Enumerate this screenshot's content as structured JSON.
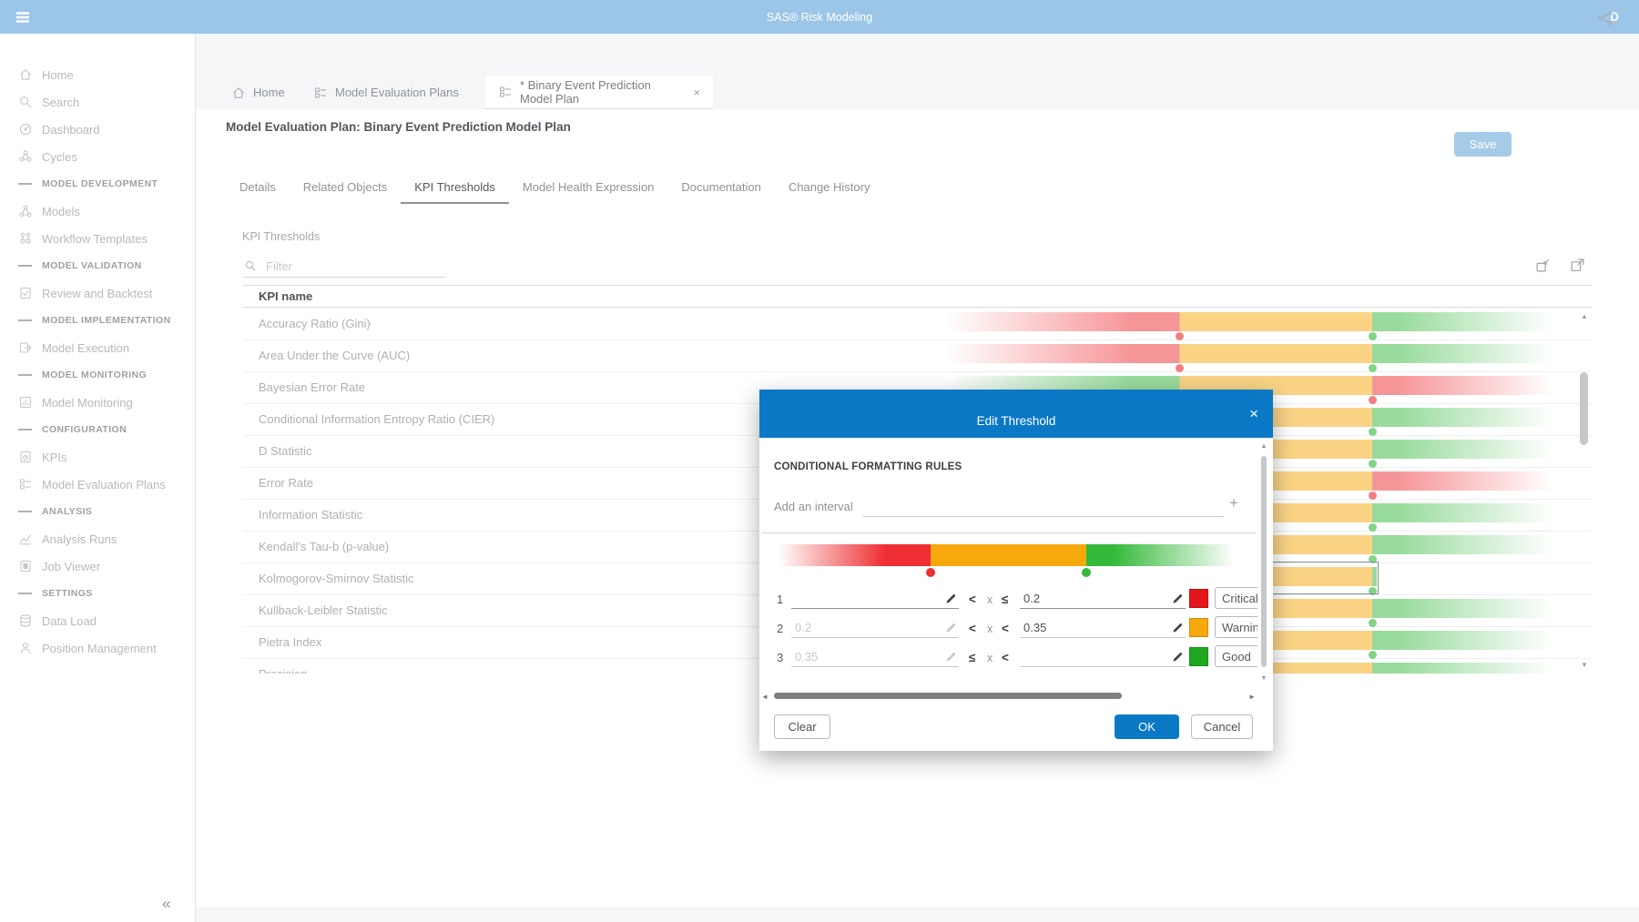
{
  "topbar": {
    "title": "SAS® Risk Modeling",
    "user_initial": "D"
  },
  "sidebar": {
    "items": [
      {
        "type": "item",
        "icon": "home-icon",
        "label": "Home"
      },
      {
        "type": "item",
        "icon": "search-icon",
        "label": "Search"
      },
      {
        "type": "item",
        "icon": "dashboard-icon",
        "label": "Dashboard"
      },
      {
        "type": "item",
        "icon": "cycles-icon",
        "label": "Cycles"
      },
      {
        "type": "section",
        "label": "MODEL DEVELOPMENT"
      },
      {
        "type": "item",
        "icon": "models-icon",
        "label": "Models"
      },
      {
        "type": "item",
        "icon": "workflow-templates-icon",
        "label": "Workflow Templates"
      },
      {
        "type": "section",
        "label": "MODEL VALIDATION"
      },
      {
        "type": "item",
        "icon": "review-backtest-icon",
        "label": "Review and Backtest"
      },
      {
        "type": "section",
        "label": "MODEL IMPLEMENTATION"
      },
      {
        "type": "item",
        "icon": "model-execution-icon",
        "label": "Model Execution"
      },
      {
        "type": "section",
        "label": "MODEL MONITORING"
      },
      {
        "type": "item",
        "icon": "model-monitoring-icon",
        "label": "Model Monitoring"
      },
      {
        "type": "section",
        "label": "CONFIGURATION"
      },
      {
        "type": "item",
        "icon": "kpis-icon",
        "label": "KPIs"
      },
      {
        "type": "item",
        "icon": "model-evaluation-plans-icon",
        "label": "Model Evaluation Plans"
      },
      {
        "type": "section",
        "label": "ANALYSIS"
      },
      {
        "type": "item",
        "icon": "analysis-runs-icon",
        "label": "Analysis Runs"
      },
      {
        "type": "item",
        "icon": "job-viewer-icon",
        "label": "Job Viewer"
      },
      {
        "type": "section",
        "label": "SETTINGS"
      },
      {
        "type": "item",
        "icon": "data-load-icon",
        "label": "Data Load"
      },
      {
        "type": "item",
        "icon": "position-management-icon",
        "label": "Position Management"
      }
    ],
    "collapse_glyph": "«"
  },
  "doc_tabs": [
    {
      "label": "Home",
      "icon": "home-icon",
      "active": false,
      "closable": false
    },
    {
      "label": "Model Evaluation Plans",
      "icon": "plans-icon",
      "active": false,
      "closable": false
    },
    {
      "label": "* Binary Event Prediction Model Plan",
      "icon": "plans-icon",
      "active": true,
      "closable": true
    }
  ],
  "page": {
    "title": "Model Evaluation Plan: Binary Event Prediction Model Plan",
    "save_label": "Save"
  },
  "sub_tabs": [
    {
      "label": "Details",
      "active": false
    },
    {
      "label": "Related Objects",
      "active": false
    },
    {
      "label": "KPI Thresholds",
      "active": true
    },
    {
      "label": "Model Health Expression",
      "active": false
    },
    {
      "label": "Documentation",
      "active": false
    },
    {
      "label": "Change History",
      "active": false
    }
  ],
  "kpi_panel": {
    "section_label": "KPI Thresholds",
    "filter_placeholder": "Filter",
    "column_header": "KPI name",
    "rows": [
      {
        "name": "Accuracy Ratio (Gini)",
        "direction": "red-to-green",
        "focused": false
      },
      {
        "name": "Area Under the Curve (AUC)",
        "direction": "red-to-green",
        "focused": false
      },
      {
        "name": "Bayesian Error Rate",
        "direction": "green-to-red",
        "focused": false
      },
      {
        "name": "Conditional Information Entropy Ratio (CIER)",
        "direction": "red-to-green",
        "focused": false
      },
      {
        "name": "D Statistic",
        "direction": "red-to-green",
        "focused": false
      },
      {
        "name": "Error Rate",
        "direction": "green-to-red",
        "focused": false
      },
      {
        "name": "Information Statistic",
        "direction": "red-to-green",
        "focused": false
      },
      {
        "name": "Kendall's Tau-b (p-value)",
        "direction": "red-to-green",
        "focused": false
      },
      {
        "name": "Kolmogorov-Smirnov Statistic",
        "direction": "red-to-green",
        "focused": true
      },
      {
        "name": "Kullback-Leibler Statistic",
        "direction": "red-to-green",
        "focused": false
      },
      {
        "name": "Pietra Index",
        "direction": "red-to-green",
        "focused": false
      },
      {
        "name": "Precision",
        "direction": "red-to-green",
        "focused": false
      }
    ]
  },
  "threshold_colors": {
    "critical": "#ee2e32",
    "warning": "#f7a80d",
    "good": "#35b93b"
  },
  "modal": {
    "title": "Edit Threshold",
    "close_glyph": "×",
    "section_title": "CONDITIONAL FORMATTING RULES",
    "add_interval_label": "Add an interval",
    "add_glyph": "+",
    "variable_symbol": "x",
    "rules": [
      {
        "index": "1",
        "lower": "",
        "lower_is_placeholder": false,
        "lower_pencil": "dark",
        "op1": "<",
        "op2": "≤",
        "upper": "0.2",
        "upper_is_placeholder": false,
        "color": "#e3161b",
        "label": "Critical"
      },
      {
        "index": "2",
        "lower": "0.2",
        "lower_is_placeholder": true,
        "lower_pencil": "light",
        "op1": "<",
        "op2": "<",
        "upper": "0.35",
        "upper_is_placeholder": false,
        "color": "#f7a80d",
        "label": "Warning"
      },
      {
        "index": "3",
        "lower": "0.35",
        "lower_is_placeholder": true,
        "lower_pencil": "light",
        "op1": "≤",
        "op2": "<",
        "upper": "",
        "upper_is_placeholder": false,
        "color": "#1fa71f",
        "label": "Good"
      }
    ],
    "buttons": {
      "clear": "Clear",
      "ok": "OK",
      "cancel": "Cancel"
    }
  },
  "glyphs": {
    "up": "▲",
    "down": "▼",
    "left": "◄",
    "right": "►"
  }
}
